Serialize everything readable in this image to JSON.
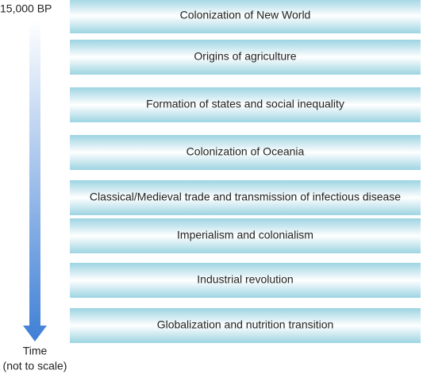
{
  "axis": {
    "start_label": "15,000 BP",
    "end_label": "Time",
    "end_note": "(not to scale)"
  },
  "events": [
    {
      "label": "Colonization of New World"
    },
    {
      "label": "Origins of agriculture"
    },
    {
      "label": "Formation of states and social inequality"
    },
    {
      "label": "Colonization of Oceania"
    },
    {
      "label": "Classical/Medieval trade and transmission of infectious disease"
    },
    {
      "label": "Imperialism and colonialism"
    },
    {
      "label": "Industrial revolution"
    },
    {
      "label": "Globalization and nutrition transition"
    }
  ]
}
